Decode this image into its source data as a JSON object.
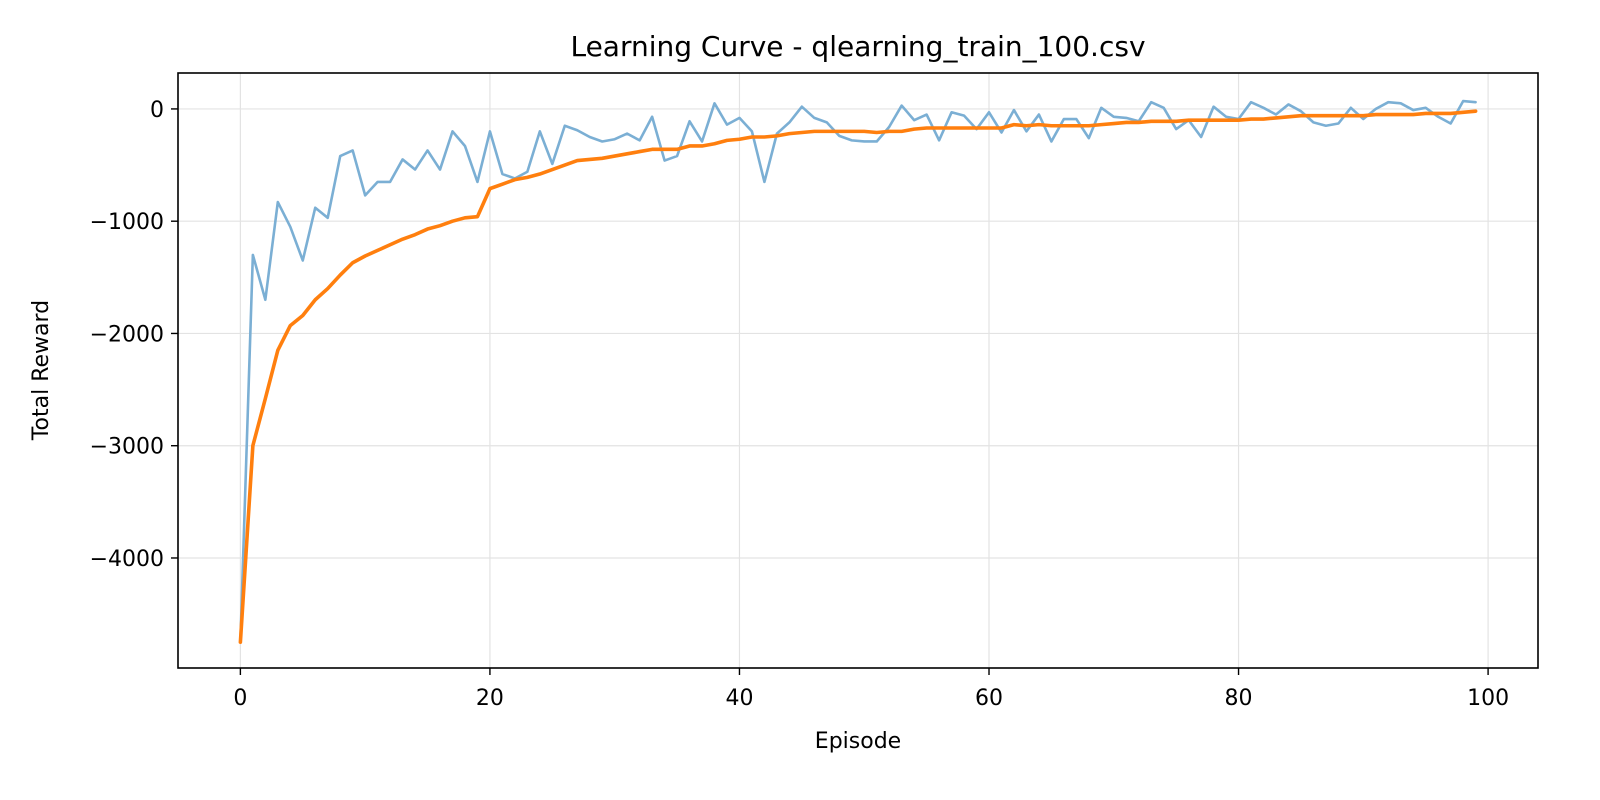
{
  "chart_data": {
    "type": "line",
    "title": "Learning Curve - qlearning_train_100.csv",
    "xlabel": "Episode",
    "ylabel": "Total Reward",
    "xlim": [
      -5,
      104
    ],
    "ylim": [
      -4980,
      320
    ],
    "x_ticks": [
      0,
      20,
      40,
      60,
      80,
      100
    ],
    "x_tick_labels": [
      "0",
      "20",
      "40",
      "60",
      "80",
      "100"
    ],
    "y_ticks": [
      0,
      -1000,
      -2000,
      -3000,
      -4000
    ],
    "y_tick_labels": [
      "0",
      "−1000",
      "−2000",
      "−3000",
      "−4000"
    ],
    "grid": true,
    "legend": "none",
    "series": [
      {
        "color": "#7bafd4",
        "values": [
          -4750,
          -1300,
          -1700,
          -830,
          -1050,
          -1350,
          -880,
          -970,
          -420,
          -370,
          -770,
          -650,
          -650,
          -450,
          -540,
          -370,
          -540,
          -200,
          -330,
          -650,
          -200,
          -580,
          -620,
          -560,
          -200,
          -490,
          -150,
          -190,
          -250,
          -290,
          -270,
          -220,
          -280,
          -70,
          -460,
          -420,
          -110,
          -290,
          50,
          -140,
          -80,
          -200,
          -650,
          -220,
          -120,
          20,
          -80,
          -120,
          -240,
          -280,
          -290,
          -290,
          -160,
          30,
          -100,
          -50,
          -280,
          -30,
          -60,
          -180,
          -30,
          -210,
          -10,
          -200,
          -50,
          -290,
          -90,
          -90,
          -260,
          10,
          -70,
          -80,
          -110,
          60,
          10,
          -180,
          -100,
          -250,
          20,
          -70,
          -90,
          60,
          10,
          -50,
          40,
          -20,
          -120,
          -150,
          -130,
          10,
          -90,
          0,
          60,
          50,
          -10,
          10,
          -70,
          -130,
          70,
          60
        ]
      },
      {
        "color": "#ff7f0e",
        "values": [
          -4750,
          -3000,
          -2580,
          -2150,
          -1930,
          -1840,
          -1700,
          -1600,
          -1480,
          -1370,
          -1310,
          -1260,
          -1210,
          -1160,
          -1120,
          -1070,
          -1040,
          -1000,
          -970,
          -960,
          -710,
          -670,
          -630,
          -610,
          -580,
          -540,
          -500,
          -460,
          -450,
          -440,
          -420,
          -400,
          -380,
          -360,
          -360,
          -360,
          -330,
          -330,
          -310,
          -280,
          -270,
          -250,
          -250,
          -240,
          -220,
          -210,
          -200,
          -200,
          -200,
          -200,
          -200,
          -210,
          -200,
          -200,
          -180,
          -170,
          -170,
          -170,
          -170,
          -170,
          -170,
          -170,
          -140,
          -150,
          -140,
          -150,
          -150,
          -150,
          -150,
          -140,
          -130,
          -120,
          -120,
          -110,
          -110,
          -110,
          -100,
          -100,
          -100,
          -100,
          -100,
          -90,
          -90,
          -80,
          -70,
          -60,
          -60,
          -60,
          -60,
          -60,
          -60,
          -50,
          -50,
          -50,
          -50,
          -40,
          -40,
          -40,
          -30,
          -20
        ]
      }
    ]
  }
}
